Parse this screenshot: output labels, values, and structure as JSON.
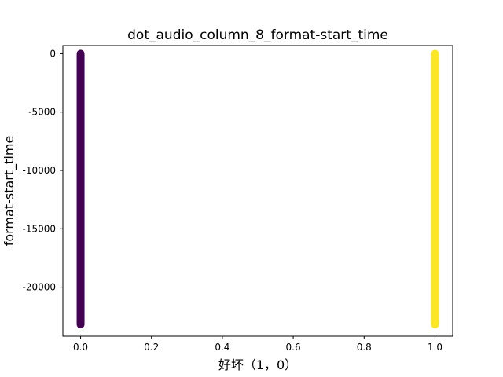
{
  "chart_data": {
    "type": "scatter",
    "title": "dot_audio_column_8_format-start_time",
    "xlabel": "好坏（1，0）",
    "ylabel": "format-start_time",
    "xlim": [
      -0.05,
      1.05
    ],
    "ylim": [
      -24200,
      700
    ],
    "grid": false,
    "legend": "none",
    "x_ticks": [
      {
        "value": 0.0,
        "label": "0.0"
      },
      {
        "value": 0.2,
        "label": "0.2"
      },
      {
        "value": 0.4,
        "label": "0.4"
      },
      {
        "value": 0.6,
        "label": "0.6"
      },
      {
        "value": 0.8,
        "label": "0.8"
      },
      {
        "value": 1.0,
        "label": "1.0"
      }
    ],
    "y_ticks": [
      {
        "value": 0,
        "label": "0"
      },
      {
        "value": -5000,
        "label": "-5000"
      },
      {
        "value": -10000,
        "label": "-10000"
      },
      {
        "value": -15000,
        "label": "-15000"
      },
      {
        "value": -20000,
        "label": "-20000"
      }
    ],
    "series": [
      {
        "x": 0,
        "y_min": -23200,
        "y_max": 0,
        "color": "#440154"
      },
      {
        "x": 1,
        "y_min": -23200,
        "y_max": 0,
        "color": "#fde725"
      }
    ]
  }
}
